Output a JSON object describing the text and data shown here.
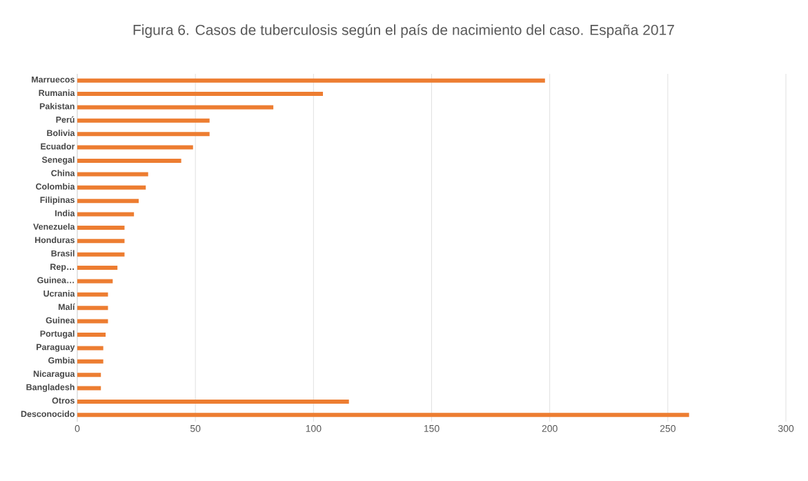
{
  "chart_data": {
    "type": "bar",
    "orientation": "horizontal",
    "title": "Figura 6. Casos de tuberculosis según el país de nacimiento del caso. España 2017",
    "categories": [
      "Marruecos",
      "Rumania",
      "Pakistan",
      "Perú",
      "Bolivia",
      "Ecuador",
      "Senegal",
      "China",
      "Colombia",
      "Filipinas",
      "India",
      "Venezuela",
      "Honduras",
      "Brasil",
      "Rep…",
      "Guinea…",
      "Ucrania",
      "Malí",
      "Guinea",
      "Portugal",
      "Paraguay",
      "Gmbia",
      "Nicaragua",
      "Bangladesh",
      "Otros",
      "Desconocido"
    ],
    "values": [
      198,
      104,
      83,
      56,
      56,
      49,
      44,
      30,
      29,
      26,
      24,
      20,
      20,
      20,
      17,
      15,
      13,
      13,
      13,
      12,
      11,
      11,
      10,
      10,
      115,
      259
    ],
    "color": "#ed7d31",
    "xlim": [
      0,
      300
    ],
    "xticks": [
      0,
      50,
      100,
      150,
      200,
      250,
      300
    ],
    "grid": "x"
  }
}
